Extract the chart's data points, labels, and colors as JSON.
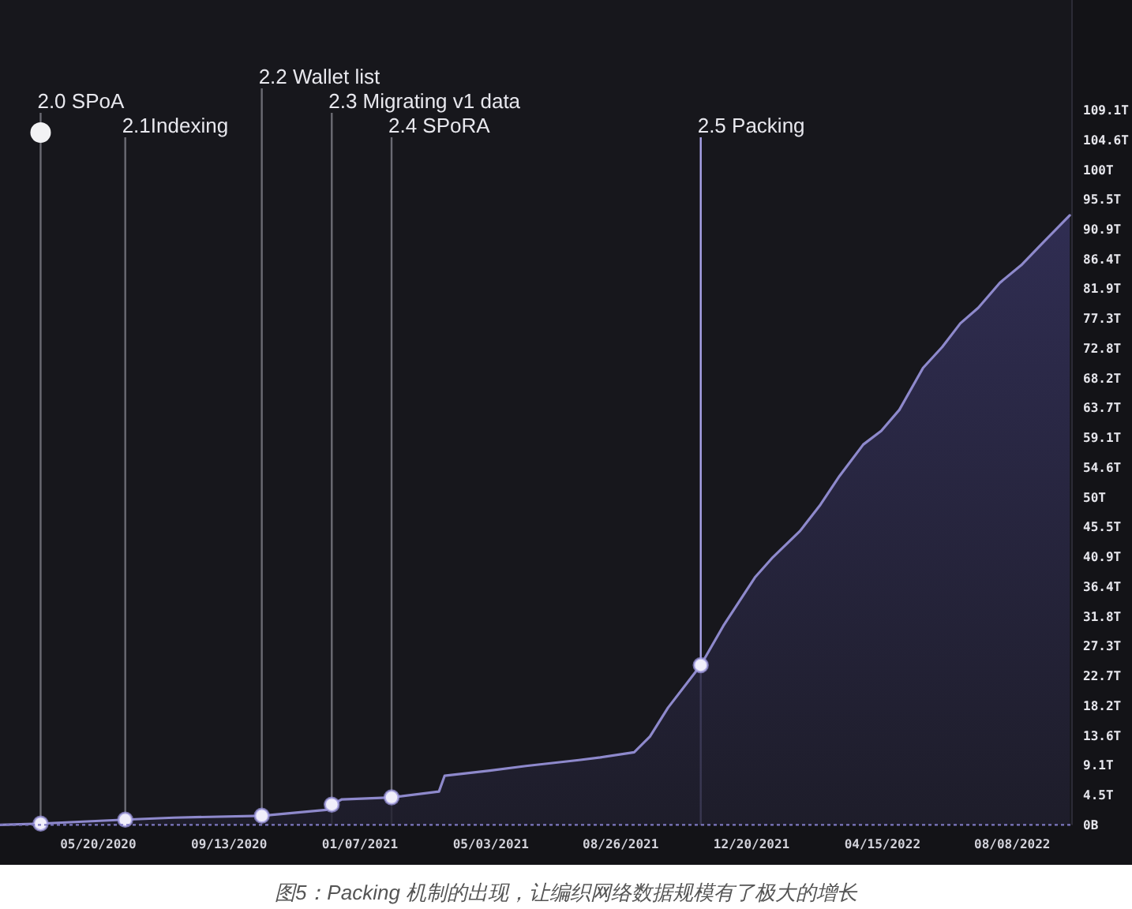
{
  "chart_data": {
    "type": "area",
    "x": [
      "2020-02-23",
      "2020-03-30",
      "2020-06-13",
      "2020-07-26",
      "2020-10-12",
      "2020-12-08",
      "2020-12-13",
      "2020-12-22",
      "2021-02-04",
      "2021-03-18",
      "2021-03-23",
      "2021-05-02",
      "2021-06-03",
      "2021-07-20",
      "2021-08-08",
      "2021-09-07",
      "2021-09-21",
      "2021-10-07",
      "2021-11-05",
      "2021-11-25",
      "2021-12-23",
      "2022-01-08",
      "2022-02-01",
      "2022-02-19",
      "2022-03-08",
      "2022-03-29",
      "2022-04-14",
      "2022-04-30",
      "2022-05-21",
      "2022-06-07",
      "2022-06-23",
      "2022-07-09",
      "2022-07-28",
      "2022-08-16",
      "2022-09-03",
      "2022-09-28"
    ],
    "series": [
      {
        "color": "#8e89cc",
        "values": [
          0,
          0.2,
          0.8,
          1.1,
          1.4,
          2.3,
          3.1,
          3.9,
          4.2,
          5.1,
          7.5,
          8.3,
          9.0,
          9.9,
          10.3,
          11.1,
          13.5,
          17.9,
          24.4,
          30.4,
          37.8,
          40.9,
          44.9,
          48.9,
          53.3,
          58.1,
          60.2,
          63.4,
          69.8,
          73.0,
          76.6,
          79.0,
          82.8,
          85.5,
          88.7,
          93.1
        ]
      },
      {
        "type": "scatter",
        "marker": "circle",
        "color": "#f0eefa",
        "x": [
          "2020-03-30",
          "2020-06-13",
          "2020-10-12",
          "2020-12-13",
          "2021-02-04",
          "2021-11-05"
        ],
        "values": [
          0.2,
          0.8,
          1.4,
          3.1,
          4.2,
          24.4
        ]
      }
    ],
    "xlim": [
      "2020-02-23",
      "2022-09-30"
    ],
    "xticks": [
      {
        "value": "2020-05-20",
        "label": "05/20/2020"
      },
      {
        "value": "2020-09-13",
        "label": "09/13/2020"
      },
      {
        "value": "2021-01-07",
        "label": "01/07/2021"
      },
      {
        "value": "2021-05-03",
        "label": "05/03/2021"
      },
      {
        "value": "2021-08-26",
        "label": "08/26/2021"
      },
      {
        "value": "2021-12-20",
        "label": "12/20/2021"
      },
      {
        "value": "2022-04-15",
        "label": "04/15/2022"
      },
      {
        "value": "2022-08-08",
        "label": "08/08/2022"
      }
    ],
    "ylim": [
      0,
      126
    ],
    "yticks": [
      {
        "value": 0,
        "label": "0B"
      },
      {
        "value": 4.5,
        "label": "4.5T"
      },
      {
        "value": 9.1,
        "label": "9.1T"
      },
      {
        "value": 13.6,
        "label": "13.6T"
      },
      {
        "value": 18.2,
        "label": "18.2T"
      },
      {
        "value": 22.7,
        "label": "22.7T"
      },
      {
        "value": 27.3,
        "label": "27.3T"
      },
      {
        "value": 31.8,
        "label": "31.8T"
      },
      {
        "value": 36.4,
        "label": "36.4T"
      },
      {
        "value": 40.9,
        "label": "40.9T"
      },
      {
        "value": 45.5,
        "label": "45.5T"
      },
      {
        "value": 50,
        "label": "50T"
      },
      {
        "value": 54.6,
        "label": "54.6T"
      },
      {
        "value": 59.1,
        "label": "59.1T"
      },
      {
        "value": 63.7,
        "label": "63.7T"
      },
      {
        "value": 68.2,
        "label": "68.2T"
      },
      {
        "value": 72.8,
        "label": "72.8T"
      },
      {
        "value": 77.3,
        "label": "77.3T"
      },
      {
        "value": 81.9,
        "label": "81.9T"
      },
      {
        "value": 86.4,
        "label": "86.4T"
      },
      {
        "value": 90.9,
        "label": "90.9T"
      },
      {
        "value": 95.5,
        "label": "95.5T"
      },
      {
        "value": 100,
        "label": "100T"
      },
      {
        "value": 104.6,
        "label": "104.6T"
      },
      {
        "value": 109.1,
        "label": "109.1T"
      }
    ],
    "ref_lines": [
      {
        "axis": "x",
        "value": "2020-03-30",
        "label": "2.0 SPoA",
        "color": "#6b6b73"
      },
      {
        "axis": "x",
        "value": "2020-06-13",
        "label": "2.1Indexing",
        "color": "#6b6b73"
      },
      {
        "axis": "x",
        "value": "2020-10-12",
        "label": "2.2 Wallet list",
        "color": "#6b6b73"
      },
      {
        "axis": "x",
        "value": "2020-12-13",
        "label": "2.3 Migrating v1 data",
        "color": "#6b6b73"
      },
      {
        "axis": "x",
        "value": "2021-02-04",
        "label": "2.4 SPoRA",
        "color": "#6b6b73"
      },
      {
        "axis": "x",
        "value": "2021-11-05",
        "label": "2.5 Packing",
        "color": "#a9a3ea"
      }
    ],
    "annotations": [
      "图5：Packing 机制的出现，让编织网络数据规模有了极大的增长"
    ]
  }
}
